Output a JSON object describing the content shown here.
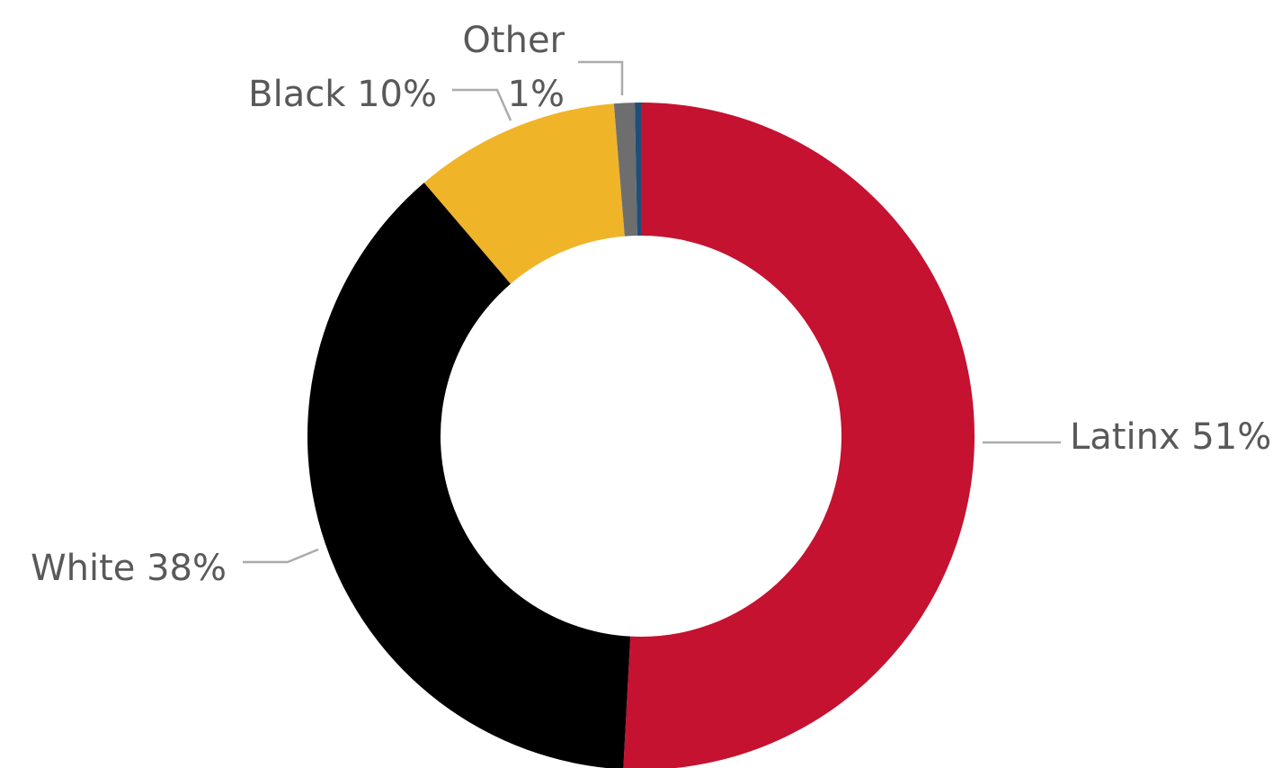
{
  "chart_data": {
    "type": "pie",
    "variant": "doughnut",
    "title": "",
    "slices": [
      {
        "label": "Latinx 51%",
        "value": 51,
        "color": "#C41230"
      },
      {
        "label": "White 38%",
        "value": 38,
        "color": "#000000"
      },
      {
        "label": "Black 10%",
        "value": 10,
        "color": "#F0B429"
      },
      {
        "label": "Other 1%",
        "value": 1,
        "color": "#6E6E6E"
      },
      {
        "label": "",
        "value": 0.3,
        "color": "#1F4E79"
      }
    ],
    "legend": "none",
    "label_color": "#595959",
    "leader_color": "#ababab"
  }
}
